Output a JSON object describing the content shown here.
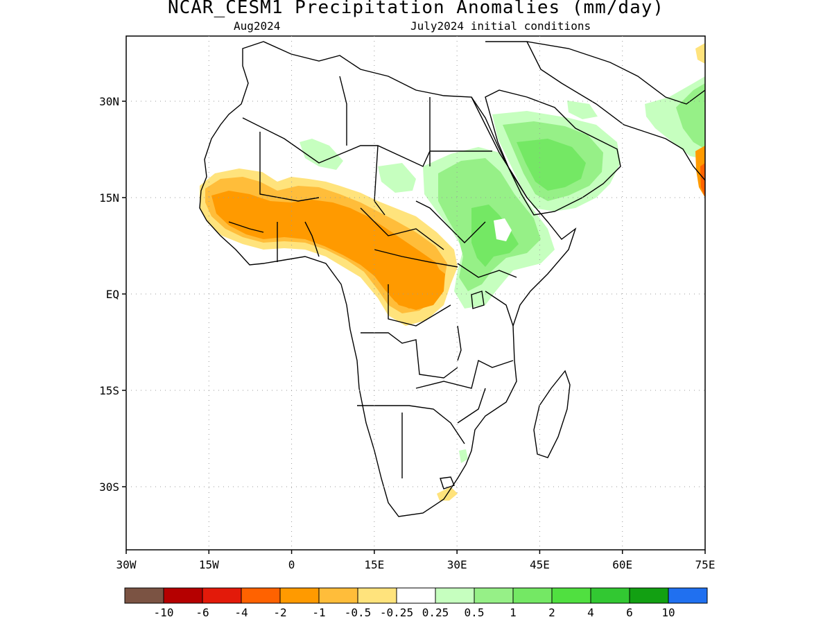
{
  "title": "NCAR_CESM1 Precipitation Anomalies (mm/day)",
  "subtitle_left": "Aug2024",
  "subtitle_right": "July2024 initial conditions",
  "axes": {
    "lat_labels": [
      "30N",
      "15N",
      "EQ",
      "15S",
      "30S"
    ],
    "lon_labels": [
      "30W",
      "15W",
      "0",
      "15E",
      "30E",
      "45E",
      "60E",
      "75E"
    ]
  },
  "colorbar": {
    "colors": [
      "#7b5343",
      "#b50000",
      "#e31a0a",
      "#ff6200",
      "#ff9a00",
      "#ffbd3a",
      "#ffe37c",
      "#ffffff",
      "#c6ffbf",
      "#96f087",
      "#74e864",
      "#50e040",
      "#32c832",
      "#12a012",
      "#2070f0"
    ],
    "labels": [
      "-10",
      "-6",
      "-4",
      "-2",
      "-1",
      "-0.5",
      "-0.25",
      "0.25",
      "0.5",
      "1",
      "2",
      "4",
      "6",
      "10"
    ]
  }
}
